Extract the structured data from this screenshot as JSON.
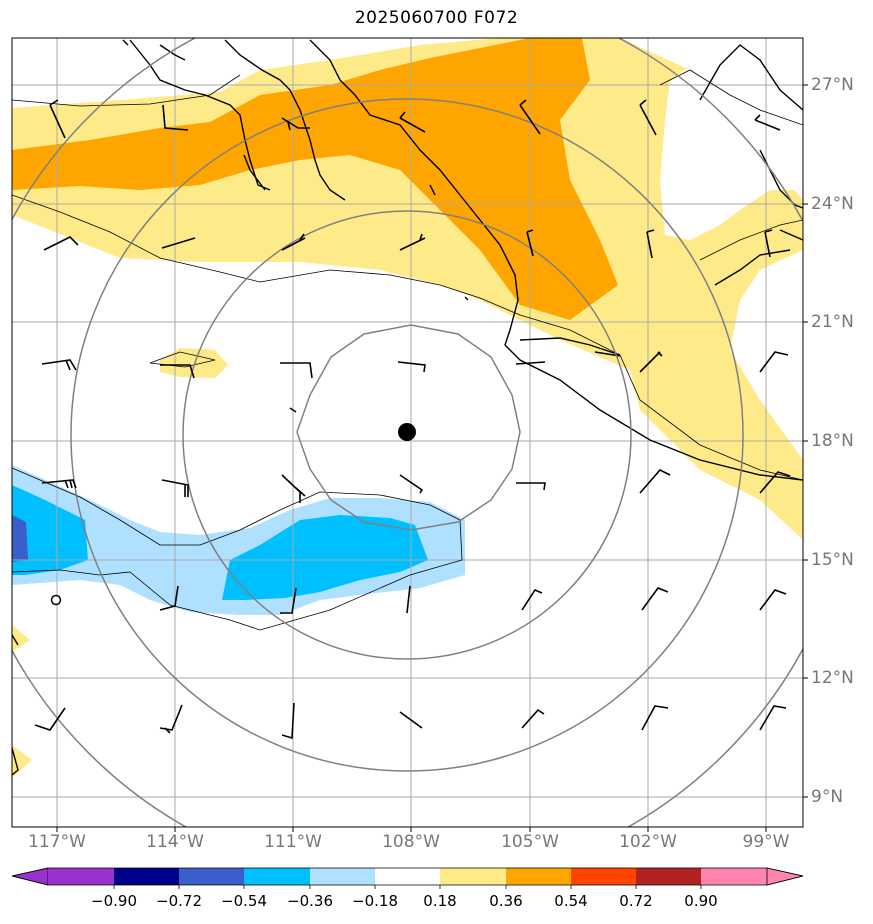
{
  "title": "2025060700 F072",
  "lon_labels": [
    "117°W",
    "114°W",
    "111°W",
    "108°W",
    "105°W",
    "102°W",
    "99°W"
  ],
  "lat_labels": [
    "27°N",
    "24°N",
    "21°N",
    "18°N",
    "15°N",
    "12°N",
    "9°N"
  ],
  "colorbar": {
    "ticks": [
      "−0.90",
      "−0.72",
      "−0.54",
      "−0.36",
      "−0.18",
      "0.18",
      "0.36",
      "0.54",
      "0.72",
      "0.90"
    ],
    "colors": [
      "#9932cc",
      "#00008b",
      "#3a5fcd",
      "#00bfff",
      "#b0e0ff",
      "#ffffff",
      "#ffea8a",
      "#ffa500",
      "#ff4500",
      "#b22222",
      "#ff85b0"
    ]
  },
  "center_marker": {
    "lat": 18.2,
    "lon": -108.1
  },
  "range_rings": 4
}
